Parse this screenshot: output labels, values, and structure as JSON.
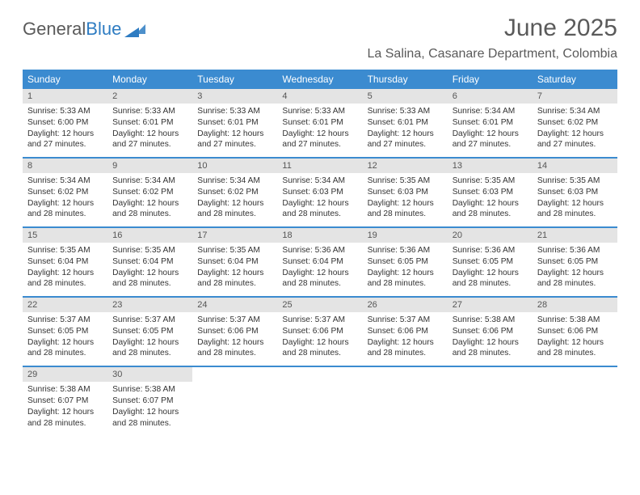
{
  "brand": {
    "word1": "General",
    "word2": "Blue",
    "word1_color": "#5a5a5a",
    "word2_color": "#2e7cc2",
    "mark_color": "#2e7cc2"
  },
  "title": "June 2025",
  "location": "La Salina, Casanare Department, Colombia",
  "colors": {
    "header_bar": "#3b8bd0",
    "header_text": "#ffffff",
    "daynum_bg": "#e4e4e4",
    "daynum_text": "#555555",
    "body_text": "#333333",
    "week_divider": "#3b8bd0",
    "page_bg": "#ffffff"
  },
  "typography": {
    "title_fontsize": 30,
    "location_fontsize": 16,
    "dayhead_fontsize": 12,
    "daynum_fontsize": 11,
    "cell_fontsize": 10.2,
    "font_family": "Arial"
  },
  "day_headers": [
    "Sunday",
    "Monday",
    "Tuesday",
    "Wednesday",
    "Thursday",
    "Friday",
    "Saturday"
  ],
  "weeks": [
    [
      {
        "n": "1",
        "sr": "Sunrise: 5:33 AM",
        "ss": "Sunset: 6:00 PM",
        "dl": "Daylight: 12 hours and 27 minutes."
      },
      {
        "n": "2",
        "sr": "Sunrise: 5:33 AM",
        "ss": "Sunset: 6:01 PM",
        "dl": "Daylight: 12 hours and 27 minutes."
      },
      {
        "n": "3",
        "sr": "Sunrise: 5:33 AM",
        "ss": "Sunset: 6:01 PM",
        "dl": "Daylight: 12 hours and 27 minutes."
      },
      {
        "n": "4",
        "sr": "Sunrise: 5:33 AM",
        "ss": "Sunset: 6:01 PM",
        "dl": "Daylight: 12 hours and 27 minutes."
      },
      {
        "n": "5",
        "sr": "Sunrise: 5:33 AM",
        "ss": "Sunset: 6:01 PM",
        "dl": "Daylight: 12 hours and 27 minutes."
      },
      {
        "n": "6",
        "sr": "Sunrise: 5:34 AM",
        "ss": "Sunset: 6:01 PM",
        "dl": "Daylight: 12 hours and 27 minutes."
      },
      {
        "n": "7",
        "sr": "Sunrise: 5:34 AM",
        "ss": "Sunset: 6:02 PM",
        "dl": "Daylight: 12 hours and 27 minutes."
      }
    ],
    [
      {
        "n": "8",
        "sr": "Sunrise: 5:34 AM",
        "ss": "Sunset: 6:02 PM",
        "dl": "Daylight: 12 hours and 28 minutes."
      },
      {
        "n": "9",
        "sr": "Sunrise: 5:34 AM",
        "ss": "Sunset: 6:02 PM",
        "dl": "Daylight: 12 hours and 28 minutes."
      },
      {
        "n": "10",
        "sr": "Sunrise: 5:34 AM",
        "ss": "Sunset: 6:02 PM",
        "dl": "Daylight: 12 hours and 28 minutes."
      },
      {
        "n": "11",
        "sr": "Sunrise: 5:34 AM",
        "ss": "Sunset: 6:03 PM",
        "dl": "Daylight: 12 hours and 28 minutes."
      },
      {
        "n": "12",
        "sr": "Sunrise: 5:35 AM",
        "ss": "Sunset: 6:03 PM",
        "dl": "Daylight: 12 hours and 28 minutes."
      },
      {
        "n": "13",
        "sr": "Sunrise: 5:35 AM",
        "ss": "Sunset: 6:03 PM",
        "dl": "Daylight: 12 hours and 28 minutes."
      },
      {
        "n": "14",
        "sr": "Sunrise: 5:35 AM",
        "ss": "Sunset: 6:03 PM",
        "dl": "Daylight: 12 hours and 28 minutes."
      }
    ],
    [
      {
        "n": "15",
        "sr": "Sunrise: 5:35 AM",
        "ss": "Sunset: 6:04 PM",
        "dl": "Daylight: 12 hours and 28 minutes."
      },
      {
        "n": "16",
        "sr": "Sunrise: 5:35 AM",
        "ss": "Sunset: 6:04 PM",
        "dl": "Daylight: 12 hours and 28 minutes."
      },
      {
        "n": "17",
        "sr": "Sunrise: 5:35 AM",
        "ss": "Sunset: 6:04 PM",
        "dl": "Daylight: 12 hours and 28 minutes."
      },
      {
        "n": "18",
        "sr": "Sunrise: 5:36 AM",
        "ss": "Sunset: 6:04 PM",
        "dl": "Daylight: 12 hours and 28 minutes."
      },
      {
        "n": "19",
        "sr": "Sunrise: 5:36 AM",
        "ss": "Sunset: 6:05 PM",
        "dl": "Daylight: 12 hours and 28 minutes."
      },
      {
        "n": "20",
        "sr": "Sunrise: 5:36 AM",
        "ss": "Sunset: 6:05 PM",
        "dl": "Daylight: 12 hours and 28 minutes."
      },
      {
        "n": "21",
        "sr": "Sunrise: 5:36 AM",
        "ss": "Sunset: 6:05 PM",
        "dl": "Daylight: 12 hours and 28 minutes."
      }
    ],
    [
      {
        "n": "22",
        "sr": "Sunrise: 5:37 AM",
        "ss": "Sunset: 6:05 PM",
        "dl": "Daylight: 12 hours and 28 minutes."
      },
      {
        "n": "23",
        "sr": "Sunrise: 5:37 AM",
        "ss": "Sunset: 6:05 PM",
        "dl": "Daylight: 12 hours and 28 minutes."
      },
      {
        "n": "24",
        "sr": "Sunrise: 5:37 AM",
        "ss": "Sunset: 6:06 PM",
        "dl": "Daylight: 12 hours and 28 minutes."
      },
      {
        "n": "25",
        "sr": "Sunrise: 5:37 AM",
        "ss": "Sunset: 6:06 PM",
        "dl": "Daylight: 12 hours and 28 minutes."
      },
      {
        "n": "26",
        "sr": "Sunrise: 5:37 AM",
        "ss": "Sunset: 6:06 PM",
        "dl": "Daylight: 12 hours and 28 minutes."
      },
      {
        "n": "27",
        "sr": "Sunrise: 5:38 AM",
        "ss": "Sunset: 6:06 PM",
        "dl": "Daylight: 12 hours and 28 minutes."
      },
      {
        "n": "28",
        "sr": "Sunrise: 5:38 AM",
        "ss": "Sunset: 6:06 PM",
        "dl": "Daylight: 12 hours and 28 minutes."
      }
    ],
    [
      {
        "n": "29",
        "sr": "Sunrise: 5:38 AM",
        "ss": "Sunset: 6:07 PM",
        "dl": "Daylight: 12 hours and 28 minutes."
      },
      {
        "n": "30",
        "sr": "Sunrise: 5:38 AM",
        "ss": "Sunset: 6:07 PM",
        "dl": "Daylight: 12 hours and 28 minutes."
      },
      null,
      null,
      null,
      null,
      null
    ]
  ]
}
